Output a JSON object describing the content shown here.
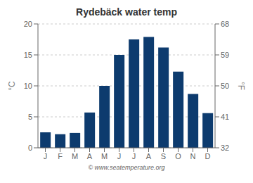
{
  "chart_data": {
    "type": "bar",
    "title": "Rydebäck water temp",
    "categories": [
      "J",
      "F",
      "M",
      "A",
      "M",
      "J",
      "J",
      "A",
      "S",
      "O",
      "N",
      "D"
    ],
    "values": [
      2.5,
      2.2,
      2.4,
      5.7,
      10.0,
      15.0,
      17.5,
      17.9,
      16.2,
      12.3,
      8.7,
      5.6
    ],
    "color": "#0d3b6e",
    "ylim": [
      0,
      20
    ],
    "yticks": [
      0,
      5,
      10,
      15,
      20
    ],
    "y_label": "°C",
    "y2lim": [
      32,
      68
    ],
    "y2ticks": [
      32,
      41,
      50,
      59,
      68
    ],
    "y2_label": "°F",
    "grid": true,
    "annotations": [
      "© www.seatemperature.org"
    ]
  }
}
